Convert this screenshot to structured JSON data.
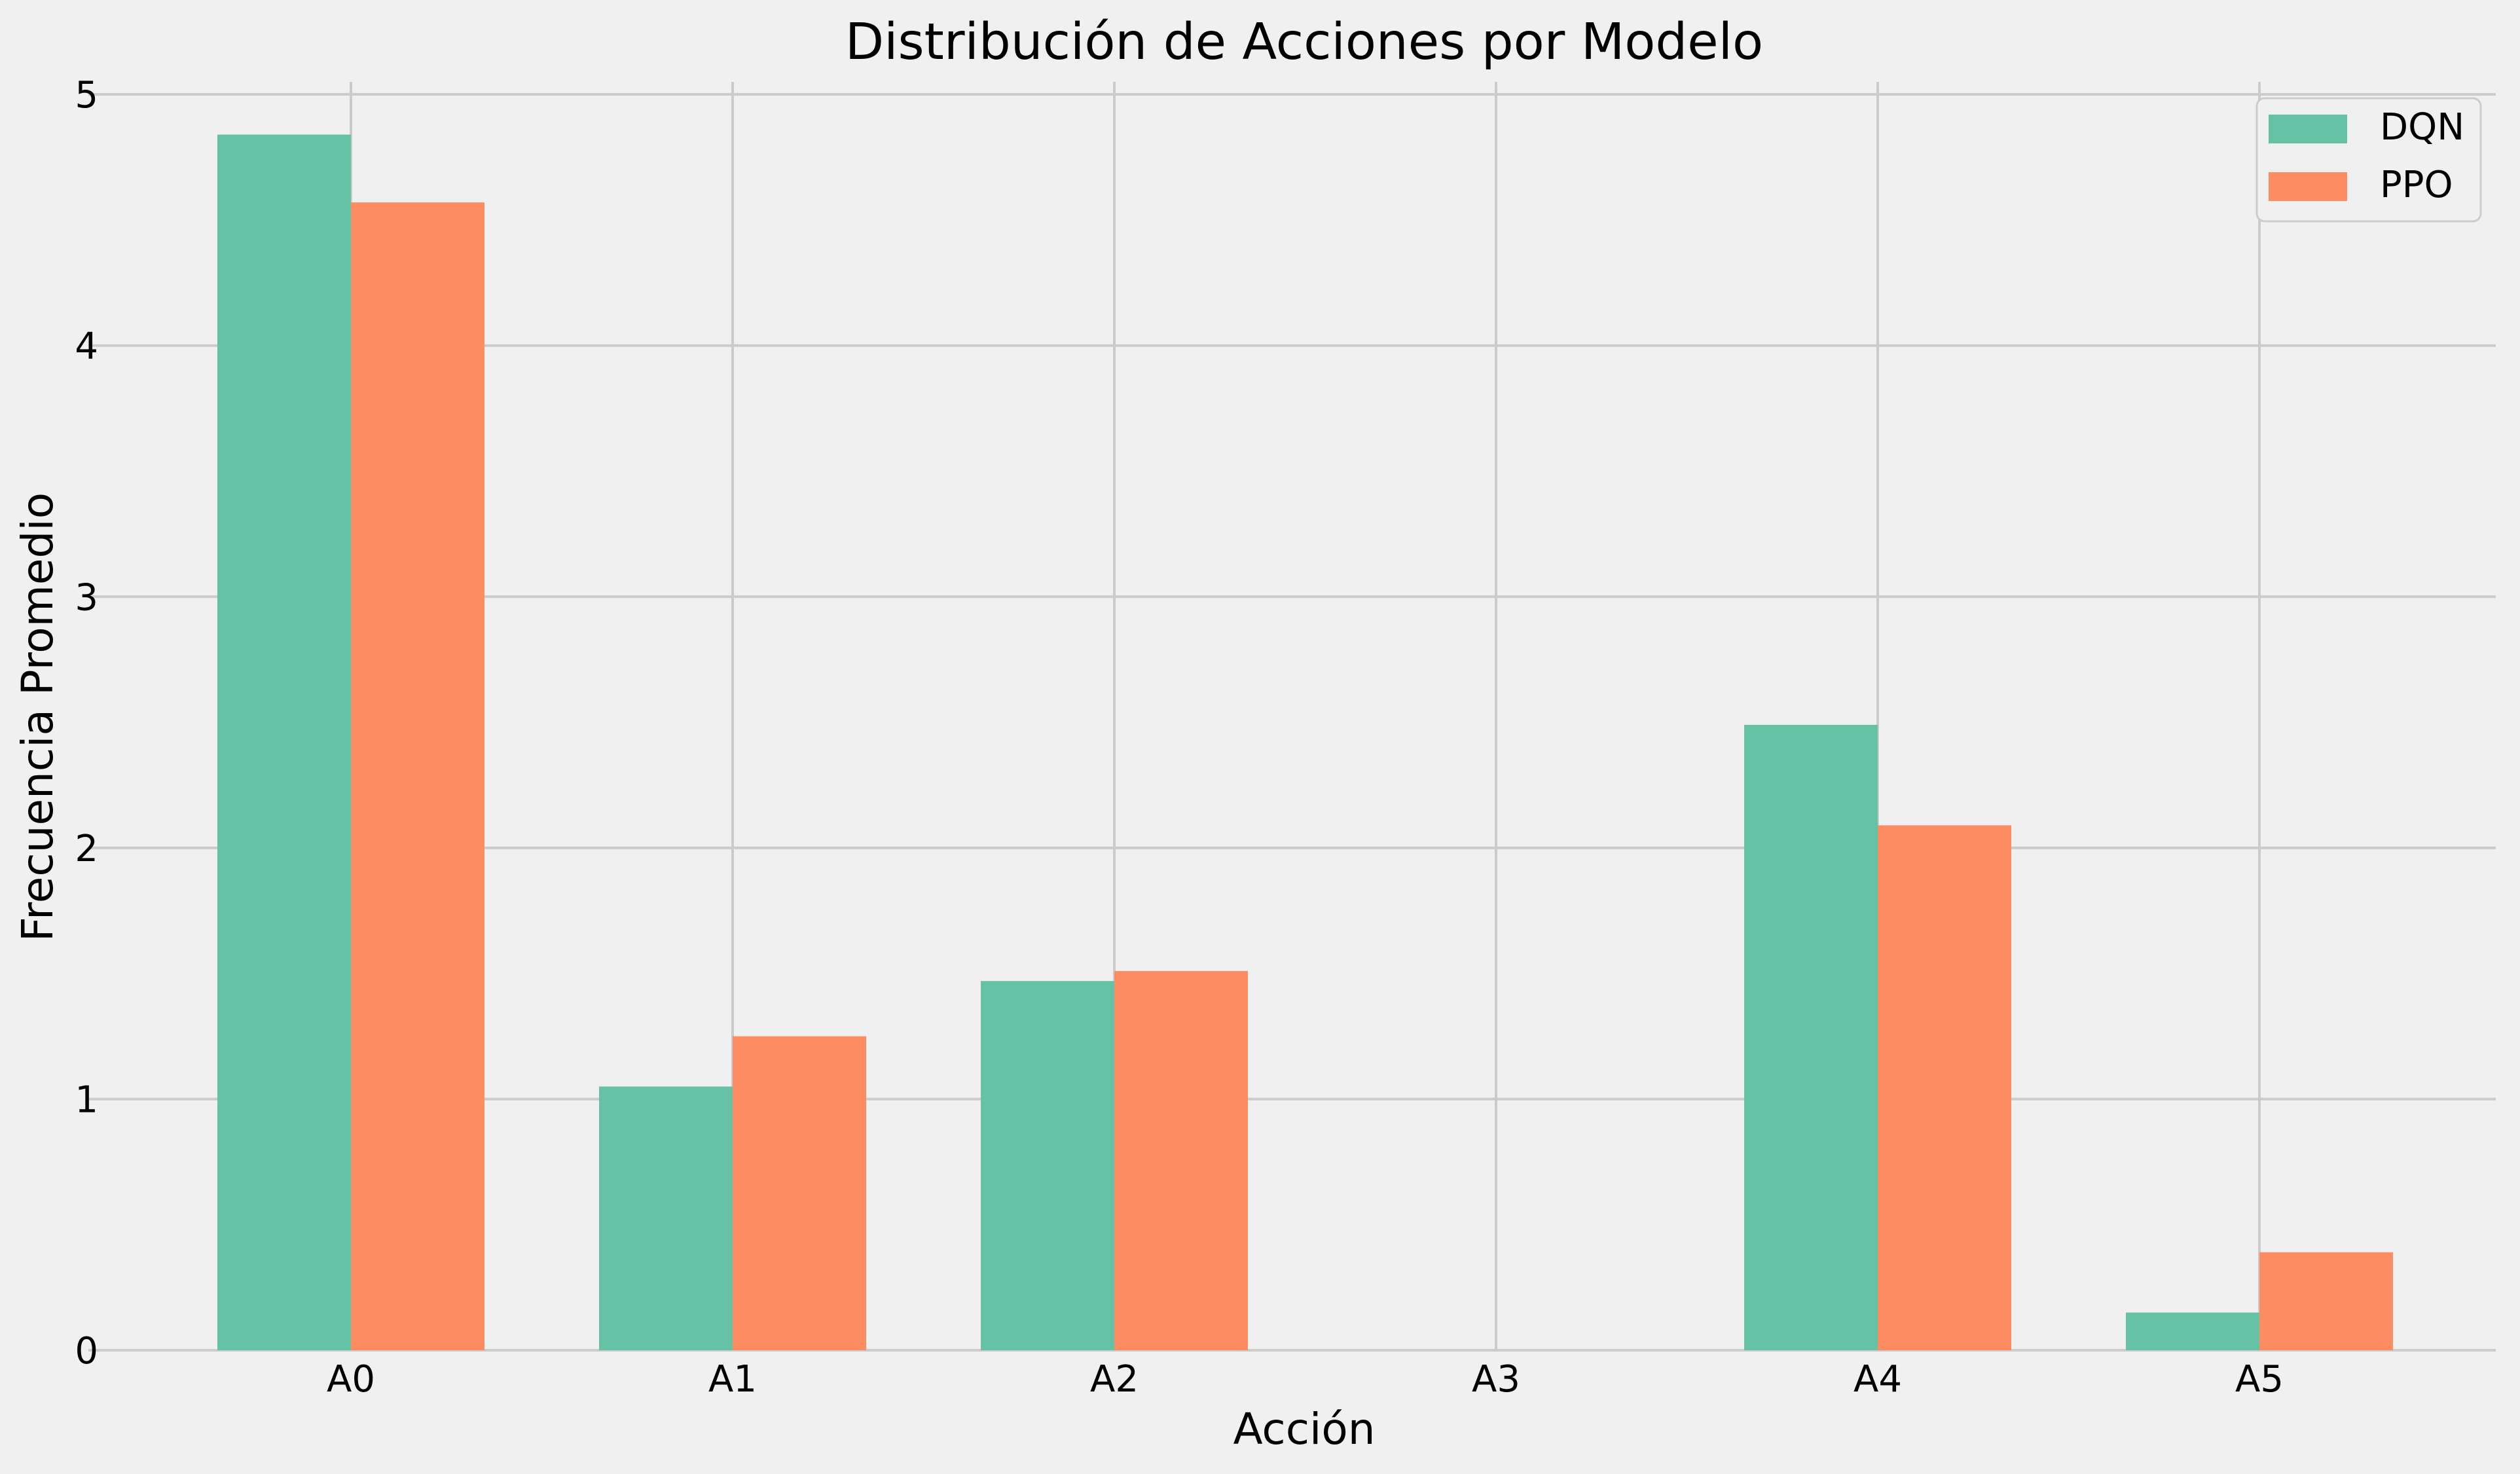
{
  "chart_data": {
    "type": "bar",
    "title": "Distribución de Acciones por Modelo",
    "xlabel": "Acción",
    "ylabel": "Frecuencia Promedio",
    "categories": [
      "A0",
      "A1",
      "A2",
      "A3",
      "A4",
      "A5"
    ],
    "series": [
      {
        "name": "DQN",
        "values": [
          4.84,
          1.05,
          1.47,
          0.0,
          2.49,
          0.15
        ],
        "color": "#66c2a5"
      },
      {
        "name": "PPO",
        "values": [
          4.57,
          1.25,
          1.51,
          0.0,
          2.09,
          0.39
        ],
        "color": "#fc8d62"
      }
    ],
    "ylim": [
      0,
      5.05
    ],
    "yticks": [
      0,
      1,
      2,
      3,
      4,
      5
    ],
    "grid": true,
    "legend_position": "top-right",
    "background_color": "#f0f0f0",
    "grid_color": "#cbcbcb"
  }
}
